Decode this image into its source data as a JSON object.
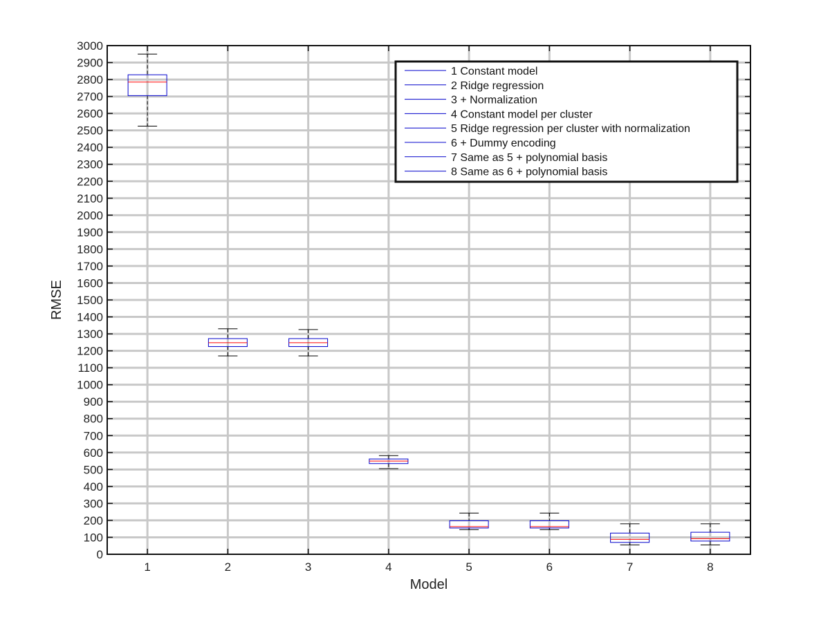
{
  "chart_data": {
    "type": "box",
    "title": "",
    "xlabel": "Model",
    "ylabel": "RMSE",
    "ylim": [
      0,
      3000
    ],
    "ytick_step": 100,
    "categories": [
      "1",
      "2",
      "3",
      "4",
      "5",
      "6",
      "7",
      "8"
    ],
    "grid": true,
    "legend_position": "top-right",
    "colors": {
      "box": "#0000cc",
      "median": "#ff0000",
      "whisker": "#000000",
      "grid": "#c8c8c8"
    },
    "boxes": [
      {
        "category": "1",
        "name": "1 Constant model",
        "whisker_low": 2525,
        "q1": 2705,
        "median": 2785,
        "q3": 2828,
        "whisker_high": 2950
      },
      {
        "category": "2",
        "name": "2 Ridge regression",
        "whisker_low": 1170,
        "q1": 1225,
        "median": 1248,
        "q3": 1272,
        "whisker_high": 1330
      },
      {
        "category": "3",
        "name": "3 + Normalization",
        "whisker_low": 1170,
        "q1": 1225,
        "median": 1248,
        "q3": 1272,
        "whisker_high": 1325
      },
      {
        "category": "4",
        "name": "4 Constant model per cluster",
        "whisker_low": 505,
        "q1": 535,
        "median": 550,
        "q3": 562,
        "whisker_high": 582
      },
      {
        "category": "5",
        "name": "5 Ridge regression per cluster with normalization",
        "whisker_low": 145,
        "q1": 155,
        "median": 163,
        "q3": 198,
        "whisker_high": 243
      },
      {
        "category": "6",
        "name": "6 + Dummy encoding",
        "whisker_low": 145,
        "q1": 155,
        "median": 163,
        "q3": 198,
        "whisker_high": 243
      },
      {
        "category": "7",
        "name": "7 Same as 5 + polynomial basis",
        "whisker_low": 55,
        "q1": 70,
        "median": 88,
        "q3": 125,
        "whisker_high": 180
      },
      {
        "category": "8",
        "name": "8 Same as 6 + polynomial basis",
        "whisker_low": 55,
        "q1": 78,
        "median": 92,
        "q3": 130,
        "whisker_high": 180
      }
    ]
  }
}
